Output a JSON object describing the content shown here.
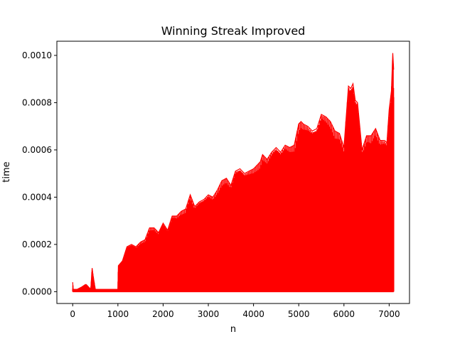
{
  "chart_data": {
    "type": "line",
    "title": "Winning Streak Improved",
    "xlabel": "n",
    "ylabel": "time",
    "xlim": [
      -350,
      7450
    ],
    "ylim": [
      -5e-05,
      0.00106
    ],
    "xticks": [
      0,
      1000,
      2000,
      3000,
      4000,
      5000,
      6000,
      7000
    ],
    "xtick_labels": [
      "0",
      "1000",
      "2000",
      "3000",
      "4000",
      "5000",
      "6000",
      "7000"
    ],
    "yticks": [
      0.0,
      0.0002,
      0.0004,
      0.0006,
      0.0008,
      0.001
    ],
    "ytick_labels": [
      "0.0000",
      "0.0002",
      "0.0004",
      "0.0006",
      "0.0008",
      "0.0010"
    ],
    "grid": false,
    "series": [
      {
        "name": "",
        "color": "#ff0000",
        "description_points": {
          "x": [
            0,
            10,
            100,
            200,
            280,
            300,
            400,
            430,
            450,
            500,
            600,
            700,
            800,
            900,
            1000,
            1010,
            1100,
            1200,
            1300,
            1400,
            1500,
            1600,
            1700,
            1800,
            1900,
            2000,
            2100,
            2200,
            2300,
            2400,
            2500,
            2600,
            2700,
            2800,
            2900,
            3000,
            3100,
            3200,
            3300,
            3400,
            3500,
            3600,
            3700,
            3800,
            3900,
            4000,
            4100,
            4150,
            4200,
            4300,
            4400,
            4500,
            4600,
            4700,
            4800,
            4900,
            5000,
            5050,
            5100,
            5200,
            5300,
            5400,
            5500,
            5600,
            5700,
            5800,
            5900,
            6000,
            6100,
            6150,
            6200,
            6250,
            6300,
            6400,
            6500,
            6600,
            6700,
            6800,
            6900,
            6950,
            7000,
            7050,
            7080,
            7100
          ],
          "y": [
            4e-05,
            1e-05,
            1e-05,
            2e-05,
            3e-05,
            3e-05,
            1e-05,
            0.0001,
            7e-05,
            1e-05,
            1e-05,
            1e-05,
            1e-05,
            1e-05,
            1e-05,
            0.00011,
            0.00013,
            0.00019,
            0.0002,
            0.00019,
            0.00021,
            0.00022,
            0.00027,
            0.00027,
            0.00025,
            0.00029,
            0.00026,
            0.00032,
            0.00032,
            0.00034,
            0.00035,
            0.00041,
            0.00036,
            0.00038,
            0.00039,
            0.00041,
            0.0004,
            0.00043,
            0.00047,
            0.00048,
            0.00045,
            0.00051,
            0.00052,
            0.0005,
            0.00051,
            0.00052,
            0.00054,
            0.00055,
            0.00058,
            0.00056,
            0.00059,
            0.00061,
            0.00059,
            0.00062,
            0.00061,
            0.00062,
            0.00071,
            0.00072,
            0.00071,
            0.0007,
            0.00068,
            0.00069,
            0.00075,
            0.00074,
            0.00072,
            0.00068,
            0.00067,
            0.00061,
            0.00087,
            0.00086,
            0.00088,
            0.00081,
            0.0008,
            0.0006,
            0.00066,
            0.00066,
            0.00069,
            0.00064,
            0.00064,
            0.00063,
            0.00077,
            0.00085,
            0.00101,
            0.00094
          ]
        }
      }
    ]
  }
}
